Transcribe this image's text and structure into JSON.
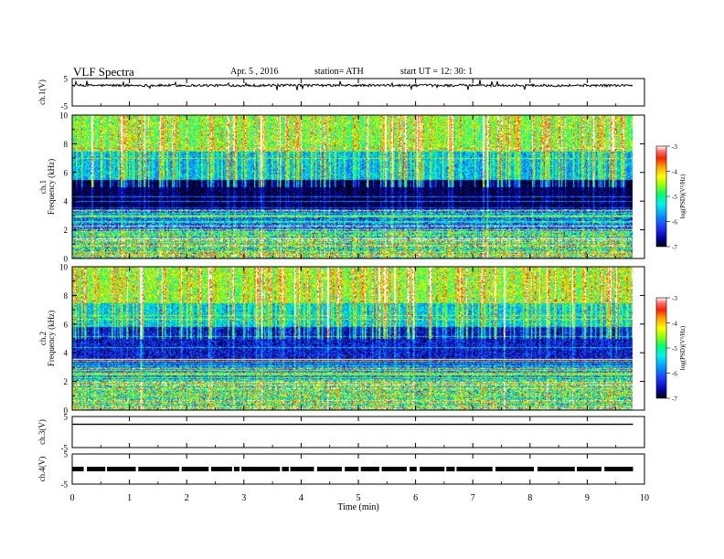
{
  "header": {
    "title": "VLF Spectra",
    "date": "Apr. 5 , 2016",
    "station": "station= ATH",
    "start_ut": "start UT = 12: 30: 1"
  },
  "chart_data": [
    {
      "type": "line",
      "panel": "ch1-waveform",
      "ylabel": "ch.1(V)",
      "ylim": [
        -5,
        5
      ],
      "yticks": [
        "5",
        "-5"
      ],
      "xlim": [
        0,
        10
      ],
      "series": [
        {
          "x": [
            0,
            9.8
          ],
          "baseline": 2.5
        }
      ]
    },
    {
      "type": "heatmap",
      "panel": "ch1-spectrogram",
      "ylabel_channel": "ch.1",
      "ylabel": "Frequency (kHz)",
      "ylim": [
        0,
        10
      ],
      "yticks": [
        "0",
        "2",
        "4",
        "6",
        "8",
        "10"
      ],
      "xlim": [
        0,
        9.8
      ],
      "colorbar": {
        "label": "log(PSD)(V²/Hz)",
        "range": [
          -7,
          -3
        ],
        "ticks": [
          "-3",
          "-4",
          "-5",
          "-6",
          "-7"
        ]
      },
      "bands": [
        {
          "from": 0,
          "to": 1.8,
          "level": -5.3,
          "noise": 1.1
        },
        {
          "from": 1.8,
          "to": 3.5,
          "level": -6.0,
          "noise": 0.8
        },
        {
          "from": 3.5,
          "to": 5.5,
          "level": -6.9,
          "noise": 0.35
        },
        {
          "from": 5.5,
          "to": 7.5,
          "level": -5.6,
          "noise": 0.6
        },
        {
          "from": 7.5,
          "to": 10,
          "level": -4.7,
          "noise": 0.7
        }
      ]
    },
    {
      "type": "heatmap",
      "panel": "ch2-spectrogram",
      "ylabel_channel": "ch.2",
      "ylabel": "Frequency (kHz)",
      "ylim": [
        0,
        10
      ],
      "yticks": [
        "0",
        "2",
        "4",
        "6",
        "8",
        "10"
      ],
      "xlim": [
        0,
        9.8
      ],
      "colorbar": {
        "label": "log(PSD)(V²/Hz)",
        "range": [
          -7,
          -3
        ],
        "ticks": [
          "-3",
          "-4",
          "-5",
          "-6",
          "-7"
        ]
      },
      "bands": [
        {
          "from": 0,
          "to": 2.2,
          "level": -5.2,
          "noise": 1.1
        },
        {
          "from": 2.2,
          "to": 3.2,
          "level": -5.8,
          "noise": 0.7
        },
        {
          "from": 3.2,
          "to": 5.8,
          "level": -6.5,
          "noise": 0.55
        },
        {
          "from": 5.8,
          "to": 7.5,
          "level": -5.5,
          "noise": 0.6
        },
        {
          "from": 7.5,
          "to": 10,
          "level": -4.6,
          "noise": 0.7
        }
      ]
    },
    {
      "type": "line",
      "panel": "ch3-waveform",
      "ylabel": "ch.3(V)",
      "ylim": [
        -5,
        5
      ],
      "yticks": [
        "5",
        "-5"
      ],
      "xlim": [
        0,
        10
      ],
      "series": [
        {
          "x": [
            0,
            9.8
          ],
          "baseline": 2.5
        }
      ]
    },
    {
      "type": "line",
      "panel": "ch4-waveform",
      "ylabel": "ch.4(V)",
      "ylim": [
        -5,
        5
      ],
      "yticks": [
        "5",
        "-5"
      ],
      "xlim": [
        0,
        10
      ],
      "series": [
        {
          "x": [
            0,
            9.8
          ],
          "baseline": 0
        }
      ]
    }
  ],
  "xaxis": {
    "label": "Time (min)",
    "ticks": [
      "0",
      "1",
      "2",
      "3",
      "4",
      "5",
      "6",
      "7",
      "8",
      "9",
      "10"
    ]
  },
  "colors": {
    "scale": [
      "#000000",
      "#0000a8",
      "#1e3cff",
      "#00a0ff",
      "#00f0f0",
      "#00ff6e",
      "#a0ff00",
      "#ffff00",
      "#ff9a00",
      "#ff2000",
      "#ff7070",
      "#ffffff"
    ]
  }
}
